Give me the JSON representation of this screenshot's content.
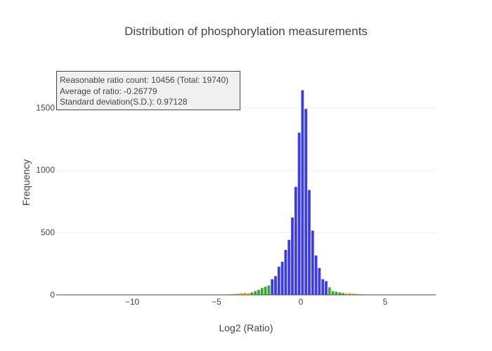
{
  "chart_data": {
    "type": "bar",
    "title": "Distribution of phosphorylation measurements",
    "xlabel": "Log2 (Ratio)",
    "ylabel": "Frequency",
    "xlim": [
      -14.5,
      8
    ],
    "ylim": [
      0,
      1800
    ],
    "bin_width": 0.2,
    "x_ticks": [
      {
        "v": -10,
        "label": "−10"
      },
      {
        "v": -5,
        "label": "−5"
      },
      {
        "v": 0,
        "label": "0"
      },
      {
        "v": 5,
        "label": "5"
      }
    ],
    "y_ticks": [
      {
        "v": 0,
        "label": "0"
      },
      {
        "v": 500,
        "label": "500"
      },
      {
        "v": 1000,
        "label": "1000"
      },
      {
        "v": 1500,
        "label": "1500"
      }
    ],
    "series": [
      {
        "color": "#f0b030",
        "points": [
          {
            "x": -4.3,
            "y": 4
          },
          {
            "x": -4.1,
            "y": 6
          },
          {
            "x": -3.9,
            "y": 8
          },
          {
            "x": -3.7,
            "y": 10
          },
          {
            "x": -3.5,
            "y": 15
          },
          {
            "x": -3.3,
            "y": 18
          },
          {
            "x": -3.1,
            "y": 14
          },
          {
            "x": 2.7,
            "y": 12
          },
          {
            "x": 2.9,
            "y": 14
          },
          {
            "x": 3.1,
            "y": 10
          },
          {
            "x": 3.3,
            "y": 8
          },
          {
            "x": 3.5,
            "y": 5
          },
          {
            "x": 3.7,
            "y": 4
          }
        ]
      },
      {
        "color": "#3aaa35",
        "points": [
          {
            "x": -2.9,
            "y": 20
          },
          {
            "x": -2.7,
            "y": 30
          },
          {
            "x": -2.5,
            "y": 40
          },
          {
            "x": -2.3,
            "y": 55
          },
          {
            "x": -2.1,
            "y": 65
          },
          {
            "x": -1.9,
            "y": 75
          },
          {
            "x": 1.7,
            "y": 60
          },
          {
            "x": 1.9,
            "y": 30
          },
          {
            "x": 2.1,
            "y": 25
          },
          {
            "x": 2.3,
            "y": 20
          },
          {
            "x": 2.5,
            "y": 15
          }
        ]
      },
      {
        "color": "#3a3af0",
        "points": [
          {
            "x": -1.7,
            "y": 125
          },
          {
            "x": -1.5,
            "y": 150
          },
          {
            "x": -1.3,
            "y": 225
          },
          {
            "x": -1.1,
            "y": 265
          },
          {
            "x": -0.9,
            "y": 360
          },
          {
            "x": -0.7,
            "y": 440
          },
          {
            "x": -0.5,
            "y": 620
          },
          {
            "x": -0.3,
            "y": 865
          },
          {
            "x": -0.1,
            "y": 1300
          },
          {
            "x": 0.1,
            "y": 1640
          },
          {
            "x": 0.3,
            "y": 1490
          },
          {
            "x": 0.5,
            "y": 840
          },
          {
            "x": 0.7,
            "y": 515
          },
          {
            "x": 0.9,
            "y": 315
          },
          {
            "x": 1.1,
            "y": 215
          },
          {
            "x": 1.3,
            "y": 125
          },
          {
            "x": 1.5,
            "y": 110
          }
        ]
      }
    ],
    "annotation": [
      "Reasonable ratio count: 10456  (Total: 19740)",
      "Average of ratio: -0.26779",
      "Standard deviation(S.D.): 0.97128"
    ]
  }
}
